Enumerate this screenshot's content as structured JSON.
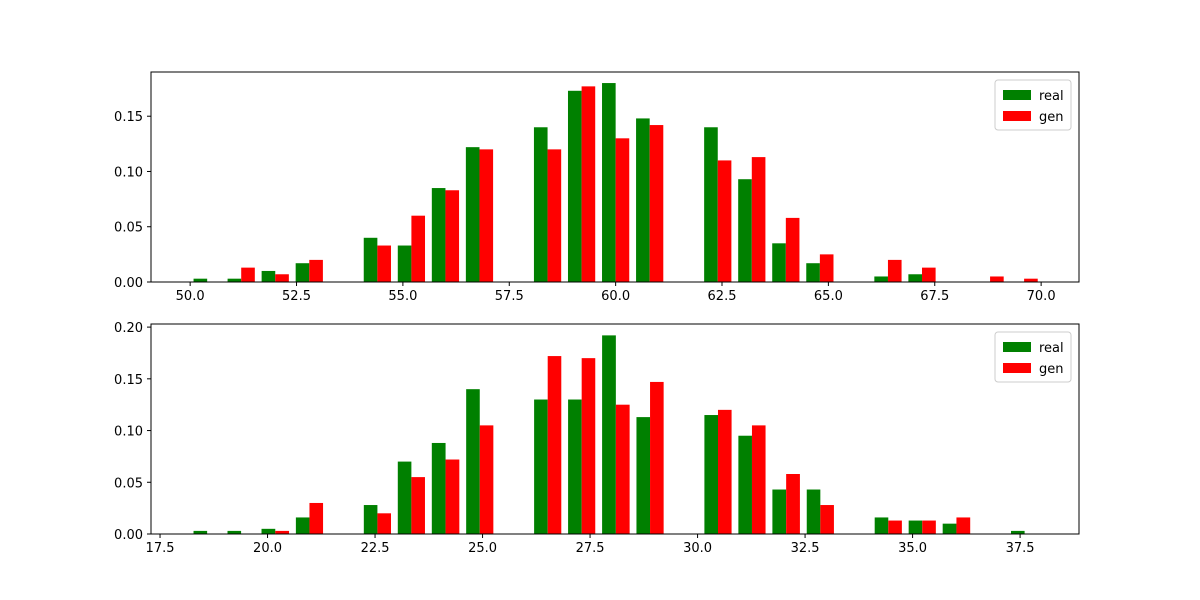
{
  "chart_data": [
    {
      "type": "histogram",
      "bins": [
        50.0,
        50.8,
        51.6,
        52.4,
        53.2,
        54.0,
        54.8,
        55.6,
        56.4,
        57.2,
        58.0,
        58.8,
        59.6,
        60.4,
        61.2,
        62.0,
        62.8,
        63.6,
        64.4,
        65.2,
        66.0,
        66.8,
        67.6,
        68.4,
        69.2,
        70.0
      ],
      "series": [
        {
          "name": "real",
          "color": "#008000",
          "values": [
            0.003,
            0.003,
            0.01,
            0.017,
            0,
            0.04,
            0.033,
            0.085,
            0.122,
            0,
            0.14,
            0.173,
            0.18,
            0.148,
            0,
            0.14,
            0.093,
            0.035,
            0.017,
            0,
            0.005,
            0.007,
            0,
            0,
            0
          ]
        },
        {
          "name": "gen",
          "color": "#ff0000",
          "values": [
            0,
            0.013,
            0.007,
            0.02,
            0,
            0.033,
            0.06,
            0.083,
            0.12,
            0,
            0.12,
            0.177,
            0.13,
            0.142,
            0,
            0.11,
            0.113,
            0.058,
            0.025,
            0,
            0.02,
            0.013,
            0,
            0.005,
            0.003
          ]
        }
      ],
      "xlim": [
        49.08,
        70.89
      ],
      "ylim": [
        0,
        0.19
      ],
      "xticks": [
        {
          "value": 50,
          "label": "50.0"
        },
        52.5,
        {
          "value": 55,
          "label": "55.0"
        },
        57.5,
        {
          "value": 60,
          "label": "60.0"
        },
        62.5,
        {
          "value": 65,
          "label": "65.0"
        },
        67.5,
        {
          "value": 70,
          "label": "70.0"
        }
      ],
      "yticks": [
        {
          "value": 0,
          "label": "0.00"
        },
        {
          "value": 0.05,
          "label": "0.05"
        },
        {
          "value": 0.1,
          "label": "0.10"
        },
        {
          "value": 0.15,
          "label": "0.15"
        }
      ],
      "legend": "upper right"
    },
    {
      "type": "histogram",
      "bins": [
        18.2,
        18.99,
        19.78,
        20.58,
        21.37,
        22.16,
        22.95,
        23.74,
        24.54,
        25.33,
        26.12,
        26.91,
        27.7,
        28.5,
        29.29,
        30.08,
        30.87,
        31.66,
        32.46,
        33.25,
        34.04,
        34.83,
        35.62,
        36.42,
        37.21,
        38.0
      ],
      "series": [
        {
          "name": "real",
          "color": "#008000",
          "values": [
            0.003,
            0.003,
            0.005,
            0.016,
            0,
            0.028,
            0.07,
            0.088,
            0.14,
            0,
            0.13,
            0.13,
            0.192,
            0.113,
            0,
            0.115,
            0.095,
            0.043,
            0.043,
            0,
            0.016,
            0.013,
            0.01,
            0,
            0.003
          ]
        },
        {
          "name": "gen",
          "color": "#ff0000",
          "values": [
            0,
            0,
            0.003,
            0.03,
            0,
            0.02,
            0.055,
            0.072,
            0.105,
            0,
            0.172,
            0.17,
            0.125,
            0.147,
            0,
            0.12,
            0.105,
            0.058,
            0.028,
            0,
            0.013,
            0.013,
            0.016,
            0,
            0
          ]
        }
      ],
      "xlim": [
        17.29,
        38.87
      ],
      "ylim": [
        0,
        0.203
      ],
      "xticks": [
        17.5,
        {
          "value": 20,
          "label": "20.0"
        },
        22.5,
        {
          "value": 25,
          "label": "25.0"
        },
        27.5,
        {
          "value": 30,
          "label": "30.0"
        },
        32.5,
        {
          "value": 35,
          "label": "35.0"
        },
        37.5
      ],
      "yticks": [
        {
          "value": 0,
          "label": "0.00"
        },
        {
          "value": 0.05,
          "label": "0.05"
        },
        {
          "value": 0.1,
          "label": "0.10"
        },
        {
          "value": 0.15,
          "label": "0.15"
        },
        {
          "value": 0.2,
          "label": "0.20"
        }
      ],
      "legend": "upper right"
    }
  ]
}
